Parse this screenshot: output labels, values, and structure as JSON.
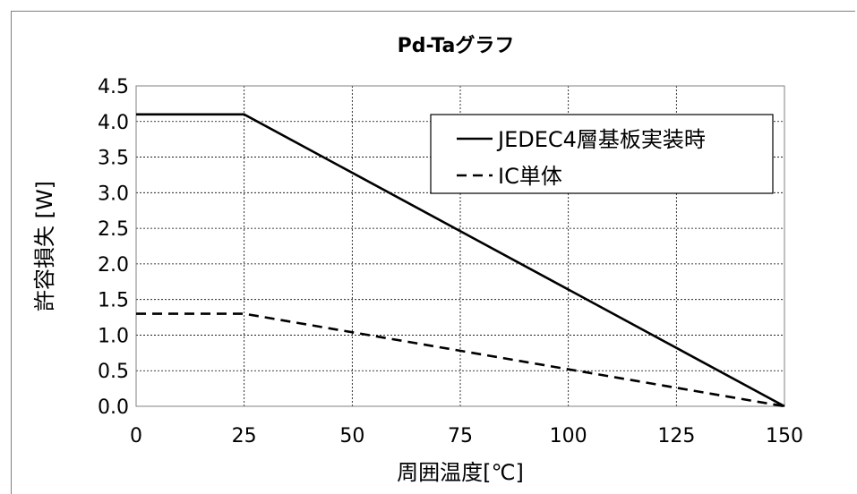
{
  "chart_data": {
    "type": "line",
    "title": "Pd-Taグラフ",
    "xlabel": "周囲温度[℃]",
    "ylabel": "許容損失 [W]",
    "xlim": [
      0,
      150
    ],
    "ylim": [
      0,
      4.5
    ],
    "x_ticks": [
      0,
      25,
      50,
      75,
      100,
      125,
      150
    ],
    "y_ticks": [
      0.0,
      0.5,
      1.0,
      1.5,
      2.0,
      2.5,
      3.0,
      3.5,
      4.0,
      4.5
    ],
    "x_tick_labels": [
      "0",
      "25",
      "50",
      "75",
      "100",
      "125",
      "150"
    ],
    "y_tick_labels": [
      "0.0",
      "0.5",
      "1.0",
      "1.5",
      "2.0",
      "2.5",
      "3.0",
      "3.5",
      "4.0",
      "4.5"
    ],
    "grid": true,
    "legend_position": "top-right",
    "series": [
      {
        "name": "JEDEC4層基板実装時",
        "style": "solid",
        "color": "#000000",
        "x": [
          0,
          25,
          150
        ],
        "y": [
          4.1,
          4.1,
          0.0
        ]
      },
      {
        "name": "IC単体",
        "style": "dashed",
        "color": "#000000",
        "x": [
          0,
          25,
          150
        ],
        "y": [
          1.3,
          1.3,
          0.0
        ]
      }
    ]
  }
}
